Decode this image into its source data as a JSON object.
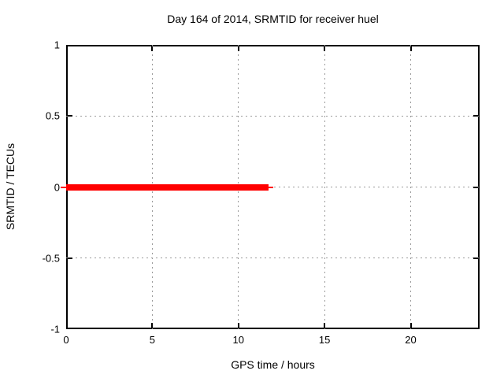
{
  "figure": {
    "background": "#ffffff"
  },
  "chart_data": {
    "type": "line",
    "title": "Day 164 of 2014, SRMTID for receiver huel",
    "xlabel": "GPS time / hours",
    "ylabel": "SRMTID / TECUs",
    "xlim": [
      0,
      24
    ],
    "ylim": [
      -1,
      1
    ],
    "grid": true,
    "legend_position": "none",
    "xticks": [
      {
        "value": 0,
        "label": "0"
      },
      {
        "value": 5,
        "label": "5"
      },
      {
        "value": 10,
        "label": "10"
      },
      {
        "value": 15,
        "label": "15"
      },
      {
        "value": 20,
        "label": "20"
      }
    ],
    "yticks": [
      {
        "value": 1,
        "label": "1"
      },
      {
        "value": 0.5,
        "label": "0.5"
      },
      {
        "value": 0,
        "label": "0"
      },
      {
        "value": -0.5,
        "label": "-0.5"
      },
      {
        "value": -1,
        "label": "-1"
      }
    ],
    "series": [
      {
        "name": "SRMTID",
        "color": "#ff0000",
        "description": "constant line at SRMTID = 0 TECUs from 0 h to about 11.75 h GPS time",
        "y_value": 0,
        "x_start": 0,
        "x_end": 11.75,
        "segments": [
          {
            "x1": -0.3,
            "x2": 0.05,
            "y": 0,
            "lw": 2
          },
          {
            "x1": 0.0,
            "x2": 11.75,
            "y": 0,
            "lw": 8
          },
          {
            "x1": 11.75,
            "x2": 12.0,
            "y": 0,
            "lw": 2
          }
        ]
      }
    ],
    "colors": {
      "series": "#ff0000",
      "grid": "#9a9a9a",
      "border": "#000000",
      "text": "#000000",
      "background": "#ffffff"
    }
  }
}
